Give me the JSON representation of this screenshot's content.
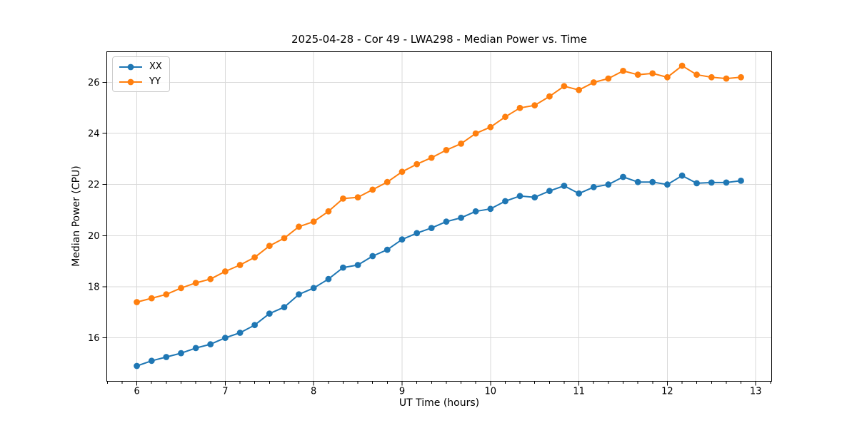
{
  "chart_data": {
    "type": "line",
    "title": "2025-04-28 - Cor 49 - LWA298 - Median Power vs. Time",
    "xlabel": "UT Time (hours)",
    "ylabel": "Median Power (CPU)",
    "x": [
      6.0,
      6.167,
      6.333,
      6.5,
      6.667,
      6.833,
      7.0,
      7.167,
      7.333,
      7.5,
      7.667,
      7.833,
      8.0,
      8.167,
      8.333,
      8.5,
      8.667,
      8.833,
      9.0,
      9.167,
      9.333,
      9.5,
      9.667,
      9.833,
      10.0,
      10.167,
      10.333,
      10.5,
      10.667,
      10.833,
      11.0,
      11.167,
      11.333,
      11.5,
      11.667,
      11.833,
      12.0,
      12.167,
      12.333,
      12.5,
      12.667,
      12.833
    ],
    "series": [
      {
        "name": "XX",
        "color": "#1f77b4",
        "values": [
          14.9,
          15.1,
          15.25,
          15.4,
          15.6,
          15.75,
          16.0,
          16.2,
          16.5,
          16.95,
          17.2,
          17.7,
          17.95,
          18.3,
          18.75,
          18.85,
          19.2,
          19.45,
          19.85,
          20.1,
          20.3,
          20.55,
          20.7,
          20.95,
          21.05,
          21.35,
          21.55,
          21.5,
          21.75,
          21.95,
          21.65,
          21.9,
          22.0,
          22.3,
          22.1,
          22.1,
          22.0,
          22.35,
          22.05,
          22.08,
          22.08,
          22.15
        ]
      },
      {
        "name": "YY",
        "color": "#ff7f0e",
        "values": [
          17.4,
          17.55,
          17.7,
          17.95,
          18.15,
          18.3,
          18.6,
          18.85,
          19.15,
          19.6,
          19.9,
          20.35,
          20.55,
          20.95,
          21.45,
          21.5,
          21.8,
          22.1,
          22.5,
          22.8,
          23.05,
          23.35,
          23.6,
          24.0,
          24.25,
          24.65,
          25.0,
          25.1,
          25.45,
          25.85,
          25.7,
          26.0,
          26.15,
          26.45,
          26.3,
          26.35,
          26.2,
          26.65,
          26.3,
          26.2,
          26.15,
          26.2
        ]
      }
    ],
    "xlim": [
      5.66,
      13.18
    ],
    "ylim": [
      14.3,
      27.2
    ],
    "xticks": [
      6,
      7,
      8,
      9,
      10,
      11,
      12,
      13
    ],
    "yticks": [
      16,
      18,
      20,
      22,
      24,
      26
    ],
    "x_minor_step": 0.166667,
    "grid": true,
    "grid_color": "#d9d9d9",
    "spine_color": "#000000",
    "background": "#ffffff",
    "legend_position": "upper-left",
    "marker": "circle",
    "marker_radius": 4.4,
    "line_width": 2
  }
}
